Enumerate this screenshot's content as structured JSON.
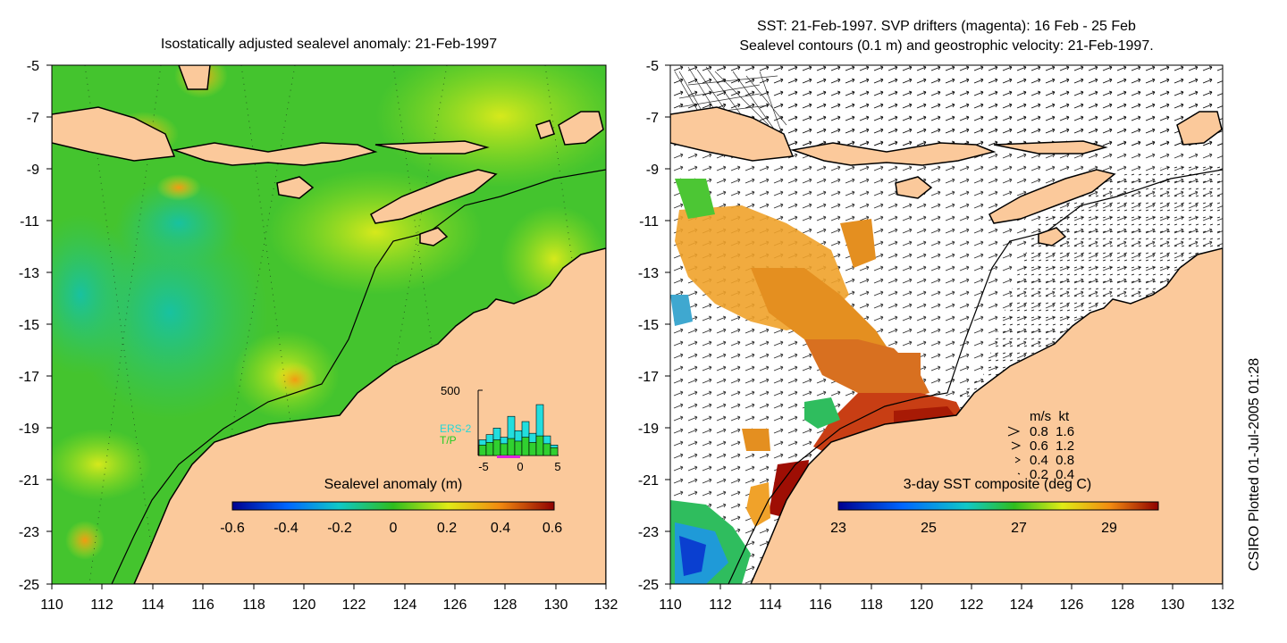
{
  "left_panel": {
    "title": "Isostatically adjusted sealevel anomaly: 21-Feb-1997",
    "y_ticks": [
      "-5",
      "-7",
      "-9",
      "-11",
      "-13",
      "-15",
      "-17",
      "-19",
      "-21",
      "-23",
      "-25"
    ],
    "x_ticks": [
      "110",
      "112",
      "114",
      "116",
      "118",
      "120",
      "122",
      "124",
      "126",
      "128",
      "130",
      "132"
    ],
    "colorbar": {
      "label": "Sealevel anomaly (m)",
      "ticks": [
        "-0.6",
        "-0.4",
        "-0.2",
        "0",
        "0.2",
        "0.4",
        "0.6"
      ]
    },
    "inset": {
      "y_label": "500",
      "series_1": "ERS-2",
      "series_2": "T/P",
      "x_ticks": [
        "-5",
        "0",
        "5"
      ],
      "ers2_counts": [
        120,
        160,
        210,
        140,
        300,
        190,
        260,
        170,
        390,
        150,
        80
      ],
      "tp_counts": [
        80,
        100,
        120,
        90,
        130,
        110,
        140,
        100,
        150,
        90,
        60
      ],
      "ymax": 500
    }
  },
  "right_panel": {
    "title_line1": "SST: 21-Feb-1997. SVP drifters (magenta): 16 Feb - 25 Feb",
    "title_line2": "Sealevel contours (0.1 m) and geostrophic velocity: 21-Feb-1997.",
    "y_ticks": [
      "-5",
      "-7",
      "-9",
      "-11",
      "-13",
      "-15",
      "-17",
      "-19",
      "-21",
      "-23",
      "-25"
    ],
    "x_ticks": [
      "110",
      "112",
      "114",
      "116",
      "118",
      "120",
      "122",
      "124",
      "126",
      "128",
      "130",
      "132"
    ],
    "legend": {
      "header": "m/s  kt",
      "rows": [
        "0.8  1.6",
        "0.6  1.2",
        "0.4  0.8",
        "0.2  0.4"
      ]
    },
    "colorbar": {
      "label": "3-day SST composite (deg C)",
      "ticks": [
        "23",
        "25",
        "27",
        "29"
      ]
    }
  },
  "credit": "CSIRO Plotted 01-Jul-2005 01:28",
  "colors": {
    "land": "#fbc99b",
    "ocean_low": "#1cc39a",
    "ocean_mid": "#42c425",
    "ocean_high": "#c8f01a",
    "sst_warm": "#a71a05"
  }
}
